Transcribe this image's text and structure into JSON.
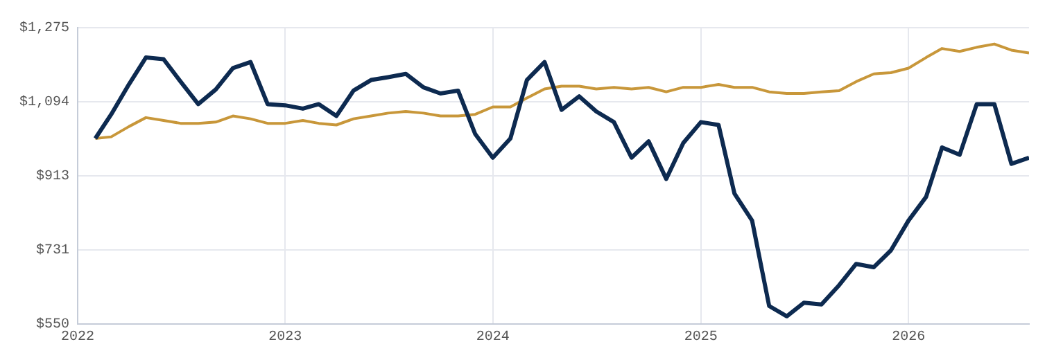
{
  "chart_data": {
    "type": "line",
    "x": [
      "2022-02",
      "2022-03",
      "2022-04",
      "2022-05",
      "2022-06",
      "2022-07",
      "2022-08",
      "2022-09",
      "2022-10",
      "2022-11",
      "2022-12",
      "2023-01",
      "2023-02",
      "2023-03",
      "2023-04",
      "2023-05",
      "2023-06",
      "2023-07",
      "2023-08",
      "2023-09",
      "2023-10",
      "2023-11",
      "2023-12",
      "2024-01",
      "2024-02",
      "2024-03",
      "2024-04",
      "2024-05",
      "2024-06",
      "2024-07",
      "2024-08",
      "2024-09",
      "2024-10",
      "2024-11",
      "2024-12",
      "2025-01",
      "2025-02",
      "2025-03",
      "2025-04",
      "2025-05",
      "2025-06",
      "2025-07",
      "2025-08",
      "2025-09",
      "2025-10",
      "2025-11",
      "2025-12",
      "2026-01",
      "2026-02",
      "2026-03",
      "2026-04",
      "2026-05",
      "2026-06",
      "2026-07",
      "2026-08"
    ],
    "series": [
      {
        "color": "#0d2a50",
        "values": [
          1004,
          1063,
          1136,
          1202,
          1198,
          1143,
          1088,
          1124,
          1176,
          1191,
          1088,
          1085,
          1077,
          1088,
          1059,
          1121,
          1147,
          1154,
          1162,
          1129,
          1114,
          1121,
          1015,
          957,
          1004,
          1147,
          1191,
          1074,
          1107,
          1070,
          1044,
          957,
          997,
          905,
          993,
          1044,
          1037,
          869,
          803,
          594,
          569,
          602,
          598,
          645,
          697,
          689,
          730,
          803,
          861,
          982,
          964,
          1088,
          1088,
          942,
          957
        ]
      },
      {
        "color": "#c8973a",
        "values": [
          1004,
          1008,
          1033,
          1055,
          1048,
          1041,
          1041,
          1044,
          1059,
          1052,
          1041,
          1041,
          1048,
          1041,
          1037,
          1052,
          1059,
          1066,
          1070,
          1066,
          1059,
          1059,
          1063,
          1081,
          1081,
          1103,
          1125,
          1132,
          1132,
          1125,
          1129,
          1125,
          1129,
          1118,
          1129,
          1129,
          1136,
          1129,
          1129,
          1118,
          1114,
          1114,
          1118,
          1121,
          1143,
          1162,
          1165,
          1176,
          1202,
          1224,
          1217,
          1227,
          1235,
          1220,
          1213
        ]
      }
    ],
    "xlim": [
      "2022-01",
      "2026-08"
    ],
    "xticks": [
      "2022",
      "2023",
      "2024",
      "2025",
      "2026"
    ],
    "ylim": [
      550,
      1275
    ],
    "yticks": [
      {
        "value": 550,
        "label": "$550"
      },
      {
        "value": 731.25,
        "label": "$731"
      },
      {
        "value": 912.5,
        "label": "$913"
      },
      {
        "value": 1093.75,
        "label": "$1,094"
      },
      {
        "value": 1275,
        "label": "$1,275"
      }
    ],
    "grid": true,
    "marker": "none",
    "line_style": "solid"
  }
}
